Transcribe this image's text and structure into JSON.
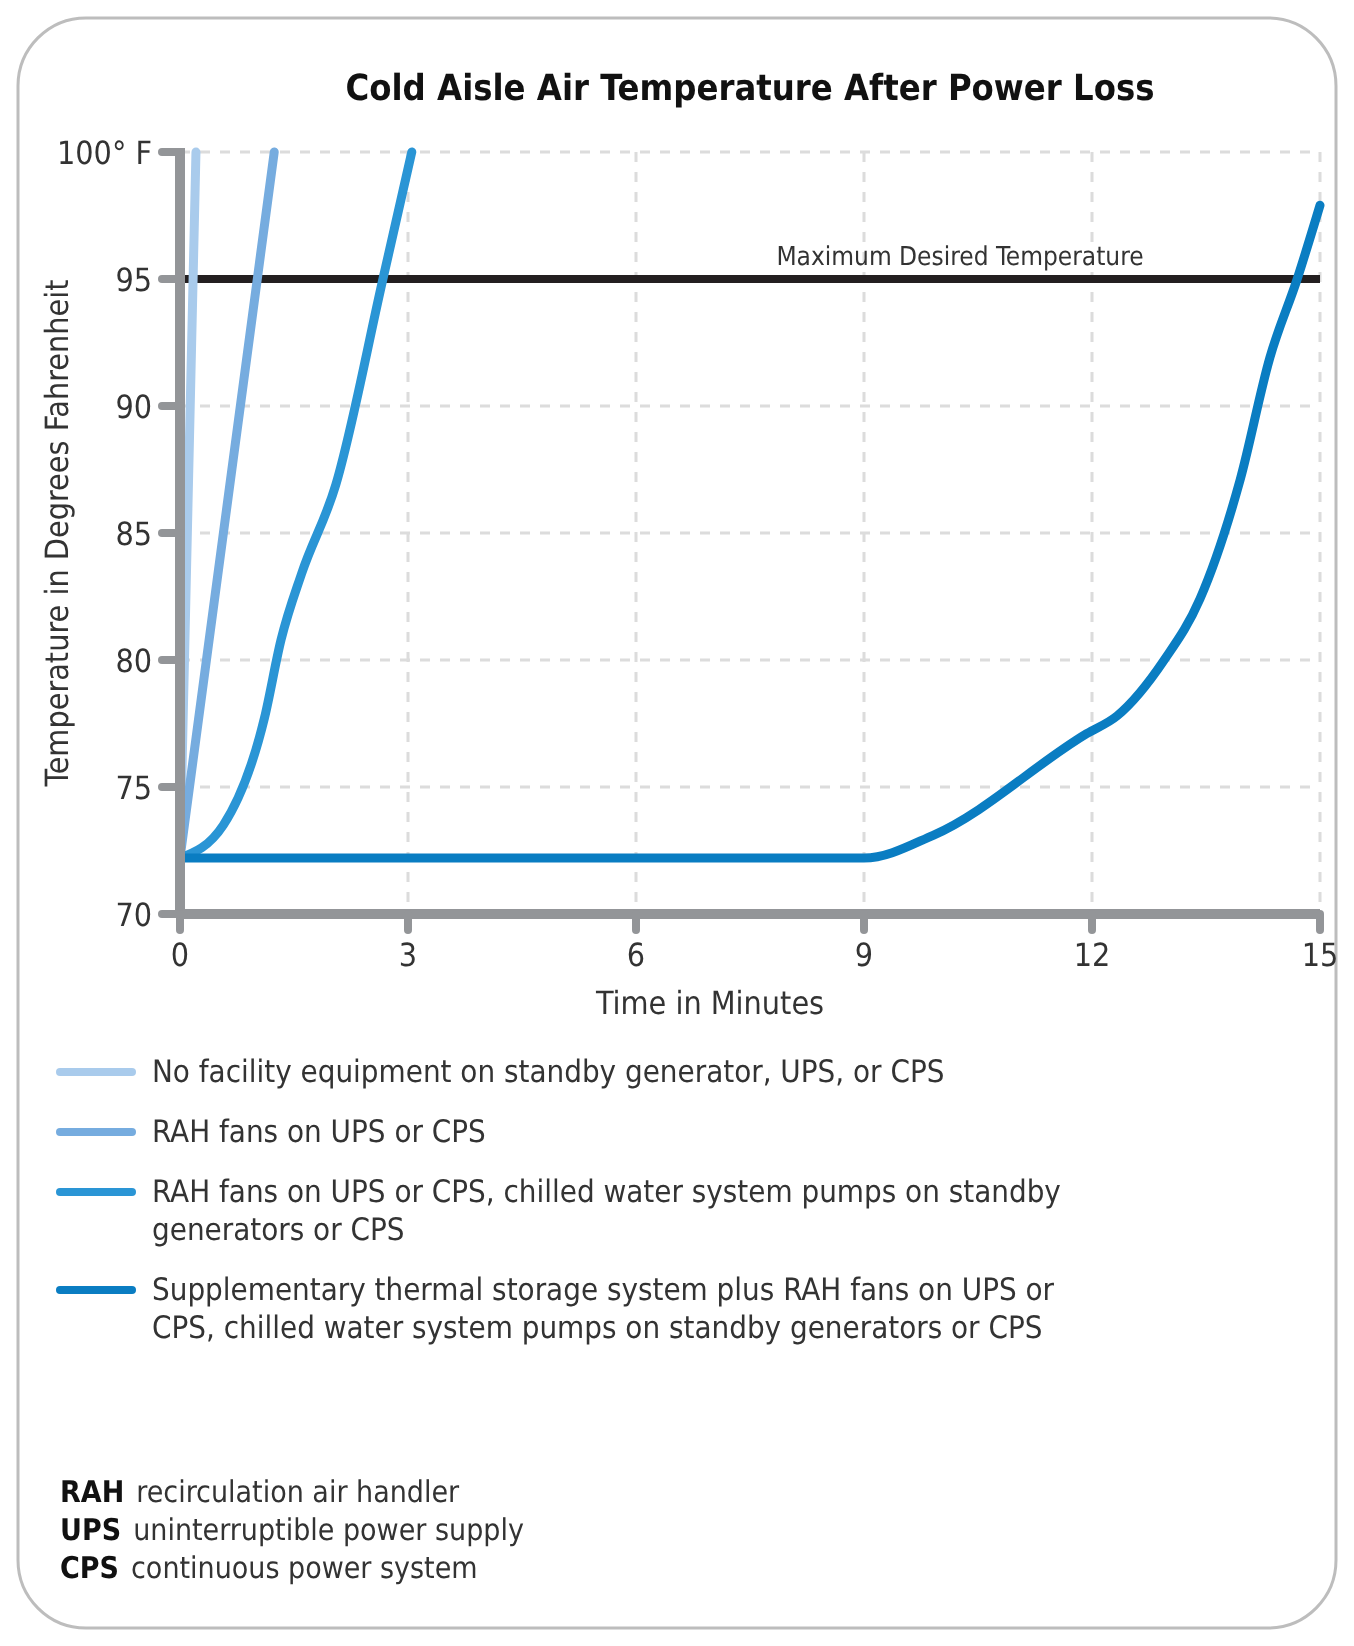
{
  "chart_data": {
    "type": "line",
    "title": "Cold Aisle Air Temperature After Power Loss",
    "xlabel": "Time in Minutes",
    "ylabel": "Temperature in Degrees Fahrenheit",
    "xlim": [
      0,
      15
    ],
    "xticks": [
      0,
      3,
      6,
      9,
      12,
      15
    ],
    "ylim": [
      70,
      100
    ],
    "yticks": [
      70,
      75,
      80,
      85,
      90,
      {
        "value": 95,
        "label": "95"
      },
      {
        "value": 100,
        "label": "100° F"
      }
    ],
    "grid": true,
    "legend": "bottom",
    "marker": "none",
    "line_style": "solid",
    "series": [
      {
        "name": "No facility equipment on standby generator, UPS, or CPS",
        "color": "#a9cbec",
        "x": [
          0,
          0.21
        ],
        "values": [
          72.2,
          100
        ]
      },
      {
        "name": "RAH fans on UPS or CPS",
        "color": "#76acdf",
        "x": [
          0,
          1.24
        ],
        "values": [
          72.2,
          100
        ]
      },
      {
        "name": "RAH fans on UPS or CPS, chilled water system pumps on standby generators or CPS",
        "color": "#2a95d5",
        "x": [
          0,
          0.57,
          1.11,
          1.33,
          1.6,
          2.05,
          2.67,
          3.05
        ],
        "values": [
          72.2,
          73.5,
          77.7,
          80.8,
          83.4,
          86.9,
          95,
          100
        ]
      },
      {
        "name": "Supplementary thermal storage system plus RAH fans on UPS or CPS, chilled water system pumps on standby generators or CPS",
        "color": "#0a7dc2",
        "x": [
          0,
          9,
          9.91,
          11.93,
          12.33,
          12.95,
          13.42,
          13.95,
          14.34,
          14.7,
          15
        ],
        "values": [
          72.2,
          72.2,
          73.1,
          77.1,
          77.8,
          80,
          82.4,
          87.1,
          91.9,
          95,
          97.9
        ]
      }
    ],
    "ref_lines": [
      {
        "axis": "y",
        "value": 95,
        "label": "Maximum Desired Temperature",
        "color": "#231f20",
        "line_style": "solid"
      }
    ],
    "annotations": [
      "RAH recirculation air handler",
      "UPS uninterruptible power supply",
      "CPS continuous power system"
    ]
  }
}
